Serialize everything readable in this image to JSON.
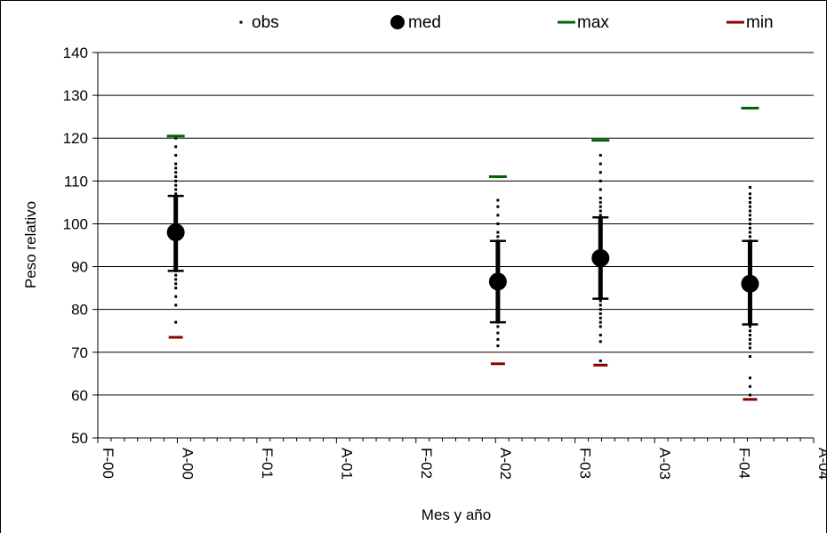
{
  "chart_data": {
    "type": "scatter",
    "title": "",
    "xlabel": "Mes y año",
    "ylabel": "Peso relativo",
    "ylim": [
      50,
      140
    ],
    "yticks": [
      50,
      60,
      70,
      80,
      90,
      100,
      110,
      120,
      130,
      140
    ],
    "x_categories": [
      "F-00",
      "A-00",
      "F-01",
      "A-01",
      "F-02",
      "A-02",
      "F-03",
      "A-03",
      "F-04",
      "A-04"
    ],
    "grid": "horizontal",
    "legend_position": "top",
    "legend": [
      {
        "key": "obs",
        "label": "obs",
        "color": "#000000"
      },
      {
        "key": "med",
        "label": "med",
        "color": "#000000"
      },
      {
        "key": "max",
        "label": "max",
        "color": "#006400"
      },
      {
        "key": "min",
        "label": "min",
        "color": "#8b0000"
      }
    ],
    "groups": [
      {
        "x": 0.98,
        "med": 98,
        "q_low": 89,
        "q_high": 106.5,
        "min": 73.5,
        "max": 120.5,
        "obs": [
          77,
          81,
          83,
          85,
          86,
          87,
          88,
          89,
          90,
          91,
          92,
          93,
          94,
          95,
          96,
          97,
          98,
          99,
          100,
          101,
          102,
          103,
          104,
          105,
          106,
          107,
          108,
          109,
          110,
          111,
          112,
          113,
          114,
          116,
          118,
          120
        ]
      },
      {
        "x": 5.03,
        "med": 86.5,
        "q_low": 77,
        "q_high": 96,
        "min": 67.3,
        "max": 111,
        "obs": [
          71.5,
          73,
          74.5,
          76,
          77,
          78,
          79,
          80,
          81,
          82,
          83,
          84,
          85,
          86,
          87,
          88,
          89,
          90,
          91,
          92,
          93,
          94,
          95,
          96,
          97,
          98,
          100,
          102,
          104,
          105.5
        ]
      },
      {
        "x": 6.32,
        "med": 92,
        "q_low": 82.5,
        "q_high": 101.5,
        "min": 67,
        "max": 119.5,
        "obs": [
          68,
          72.5,
          74,
          76,
          77,
          78,
          79,
          80,
          81,
          82,
          83,
          84,
          85,
          86,
          87,
          88,
          89,
          90,
          91,
          92,
          93,
          94,
          95,
          96,
          97,
          98,
          99,
          100,
          101,
          102,
          103,
          104,
          105,
          106,
          108,
          110,
          112,
          114,
          116
        ]
      },
      {
        "x": 8.2,
        "med": 86,
        "q_low": 76.5,
        "q_high": 96,
        "min": 59,
        "max": 127,
        "obs": [
          60,
          62,
          64,
          69,
          71,
          72,
          73,
          74,
          75,
          76,
          77,
          78,
          79,
          80,
          81,
          82,
          83,
          84,
          85,
          86,
          87,
          88,
          89,
          90,
          91,
          92,
          93,
          94,
          95,
          96,
          97,
          98,
          99,
          100,
          101,
          102,
          103,
          104,
          105,
          106,
          107,
          108.5
        ]
      }
    ]
  }
}
